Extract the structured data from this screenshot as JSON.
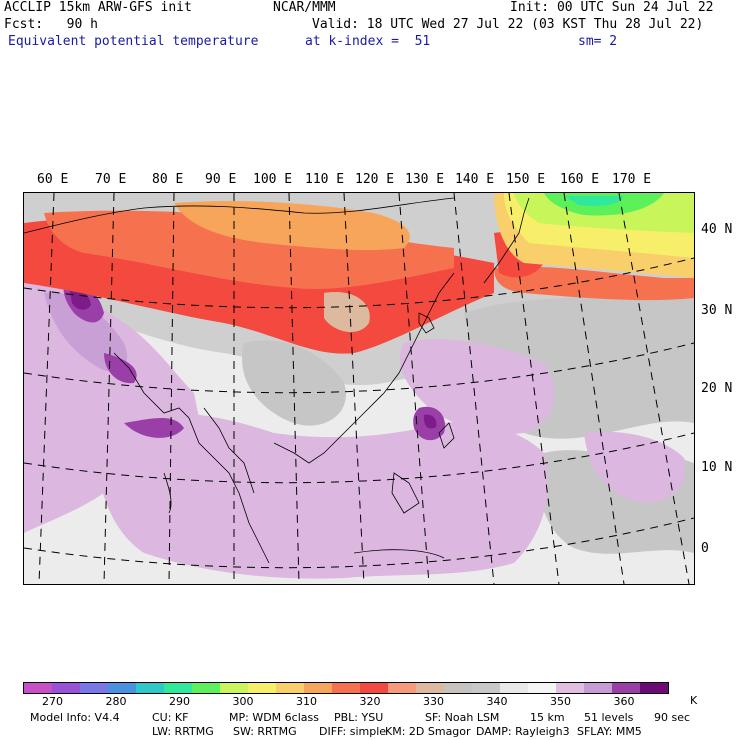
{
  "header": {
    "model": "ACCLIP 15km ARW-GFS init",
    "org": "NCAR/MMM",
    "init": "Init: 00 UTC Sun 24 Jul 22",
    "fcst": "Fcst:   90 h",
    "valid": "Valid: 18 UTC Wed 27 Jul 22 (03 KST Thu 28 Jul 22)",
    "field": "Equivalent potential temperature",
    "level": "at k-index =  51",
    "smooth": "sm= 2"
  },
  "map": {
    "lon_labels": [
      "60 E",
      "70 E",
      "80 E",
      "90 E",
      "100 E",
      "110 E",
      "120 E",
      "130 E",
      "140 E",
      "150 E",
      "160 E",
      "170 E"
    ],
    "lat_labels": [
      "40 N",
      "30 N",
      "20 N",
      "10 N",
      "0"
    ]
  },
  "colorbar": {
    "colors": [
      "#c94fc9",
      "#9a52d6",
      "#7a78e8",
      "#4a92e0",
      "#2ec8c8",
      "#30e89c",
      "#5cf05a",
      "#c8f55a",
      "#f7ef6a",
      "#f9cf6c",
      "#f7a55a",
      "#f6724f",
      "#f3493f",
      "#f79a7c",
      "#ddb9a0",
      "#c7c2bd",
      "#c8c8c8",
      "#e8e8e8",
      "#f5f5f5",
      "#e0bfe0",
      "#c89ad6",
      "#9b3fa8",
      "#6e0a78"
    ],
    "labels": [
      "270",
      "280",
      "290",
      "300",
      "310",
      "320",
      "330",
      "340",
      "350",
      "360"
    ],
    "unit": "K"
  },
  "footer": {
    "line1": [
      "Model Info: V4.4",
      "CU: KF",
      "MP: WDM 6class",
      "PBL: YSU",
      "SF: Noah LSM",
      "15 km",
      "51 levels",
      "90 sec"
    ],
    "line2": [
      "LW: RRTMG",
      "SW: RRTMG",
      "DIFF: simple",
      "KM: 2D Smagor",
      "DAMP: Rayleigh3",
      "SFLAY: MM5"
    ]
  }
}
